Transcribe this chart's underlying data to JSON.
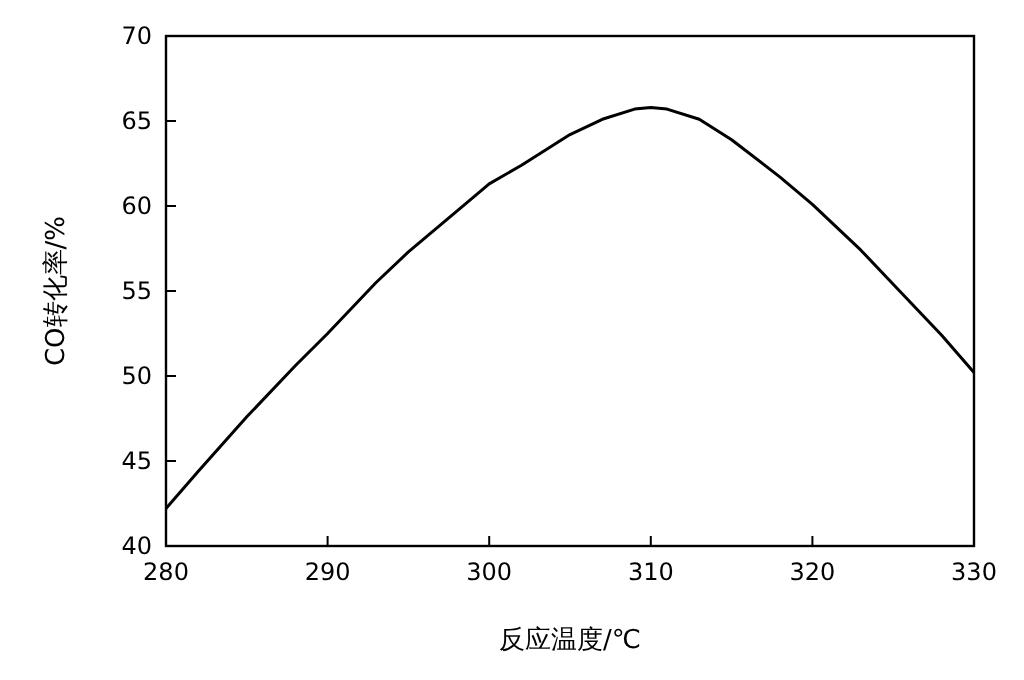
{
  "chart_data": {
    "type": "line",
    "xlabel": "反应温度/℃",
    "ylabel": "CO转化率/%",
    "x": [
      280,
      282,
      285,
      288,
      290,
      293,
      295,
      298,
      300,
      302,
      305,
      307,
      309,
      310,
      311,
      313,
      315,
      318,
      320,
      323,
      325,
      328,
      330
    ],
    "series": [
      {
        "color": "#000000",
        "values": [
          42.2,
          44.4,
          47.6,
          50.6,
          52.5,
          55.5,
          57.3,
          59.7,
          61.3,
          62.4,
          64.2,
          65.1,
          65.7,
          65.8,
          65.7,
          65.1,
          63.9,
          61.7,
          60.1,
          57.4,
          55.4,
          52.4,
          50.2
        ]
      }
    ],
    "xlim": [
      280,
      330
    ],
    "ylim": [
      40,
      70
    ],
    "xticks": [
      280,
      290,
      300,
      310,
      320,
      330
    ],
    "yticks": [
      40,
      45,
      50,
      55,
      60,
      65,
      70
    ],
    "marker": "none",
    "line_style": "solid"
  }
}
